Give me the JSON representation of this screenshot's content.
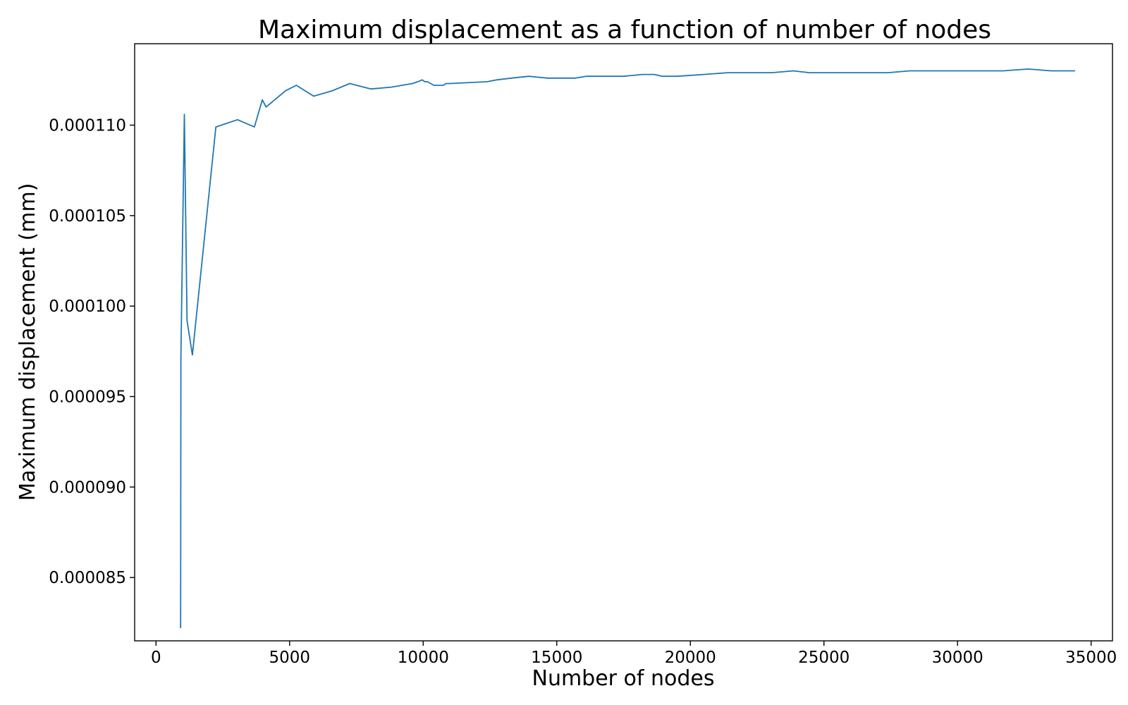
{
  "chart_data": {
    "type": "line",
    "title": "Maximum displacement as a function of number of nodes",
    "xlabel": "Number of nodes",
    "ylabel": "Maximum displacement (mm)",
    "xlim": [
      -800,
      35800
    ],
    "ylim": [
      8.15e-05,
      0.0001145
    ],
    "grid": false,
    "legend": "none",
    "colors": {
      "series": "#1f77b4",
      "axes": "#000000",
      "background": "#ffffff"
    },
    "x_ticks": [
      0,
      5000,
      10000,
      15000,
      20000,
      25000,
      30000,
      35000
    ],
    "x_tick_labels": [
      "0",
      "5000",
      "10000",
      "15000",
      "20000",
      "25000",
      "30000",
      "35000"
    ],
    "y_ticks": [
      8.5e-05,
      9e-05,
      9.5e-05,
      0.0001,
      0.000105,
      0.00011
    ],
    "y_tick_labels": [
      "0.000085",
      "0.000090",
      "0.000095",
      "0.000100",
      "0.000105",
      "0.000110"
    ],
    "series": [
      {
        "x": [
          920,
          930,
          1060,
          1160,
          1360,
          2240,
          3050,
          3680,
          3980,
          4120,
          4850,
          5250,
          5900,
          6600,
          7250,
          8050,
          8800,
          9600,
          9800,
          9960,
          10060,
          10160,
          10400,
          10750,
          10850,
          11000,
          12400,
          12750,
          13300,
          13950,
          14650,
          15100,
          15700,
          16100,
          16900,
          17500,
          18200,
          18650,
          18950,
          19500,
          20500,
          21400,
          22600,
          23050,
          23850,
          24450,
          25300,
          26450,
          27400,
          28200,
          28750,
          29500,
          30400,
          31700,
          32650,
          33500,
          34400
        ],
        "y": [
          8.22e-05,
          9.72e-05,
          0.0001106,
          9.92e-05,
          9.73e-05,
          0.0001099,
          0.0001103,
          0.0001099,
          0.0001114,
          0.000111,
          0.0001119,
          0.0001122,
          0.0001116,
          0.0001119,
          0.0001123,
          0.000112,
          0.0001121,
          0.0001123,
          0.0001124,
          0.0001125,
          0.0001124,
          0.0001124,
          0.0001122,
          0.0001122,
          0.0001123,
          0.0001123,
          0.0001124,
          0.0001125,
          0.0001126,
          0.0001127,
          0.0001126,
          0.0001126,
          0.0001126,
          0.0001127,
          0.0001127,
          0.0001127,
          0.0001128,
          0.0001128,
          0.0001127,
          0.0001127,
          0.0001128,
          0.0001129,
          0.0001129,
          0.0001129,
          0.000113,
          0.0001129,
          0.0001129,
          0.0001129,
          0.0001129,
          0.000113,
          0.000113,
          0.000113,
          0.000113,
          0.000113,
          0.0001131,
          0.000113,
          0.000113
        ]
      }
    ]
  }
}
